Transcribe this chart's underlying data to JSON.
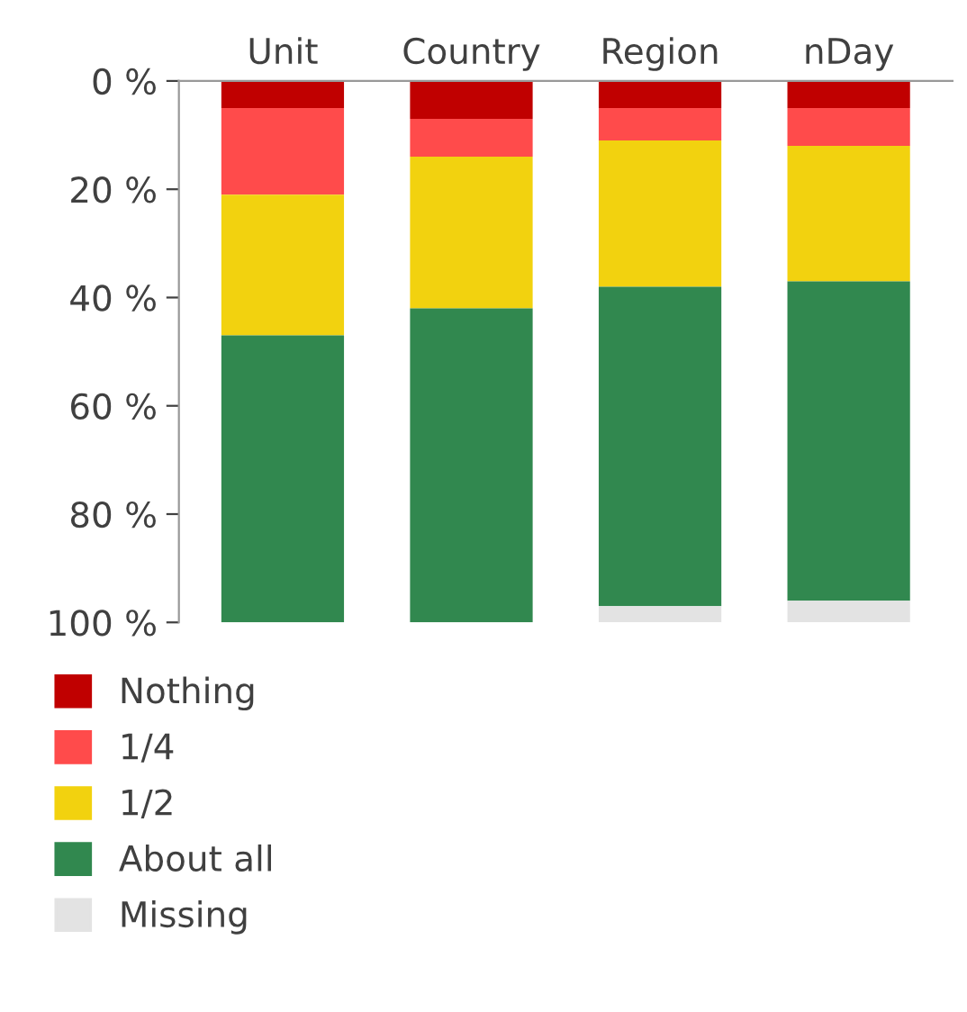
{
  "chart_data": {
    "type": "bar",
    "stacked": true,
    "categories": [
      "Unit",
      "Country",
      "Region",
      "nDay"
    ],
    "series": [
      {
        "name": "Nothing",
        "color": "#c00000",
        "values": [
          5,
          7,
          5,
          5
        ]
      },
      {
        "name": "1/4",
        "color": "#ff4b4b",
        "values": [
          16,
          7,
          6,
          7
        ]
      },
      {
        "name": "1/2",
        "color": "#f2d20f",
        "values": [
          26,
          28,
          27,
          25
        ]
      },
      {
        "name": "About all",
        "color": "#31884f",
        "values": [
          53,
          58,
          59,
          59
        ]
      },
      {
        "name": "Missing",
        "color": "#e3e3e3",
        "values": [
          0,
          0,
          3,
          4
        ]
      }
    ],
    "ylim": [
      100,
      0
    ],
    "yticks": [
      {
        "value": 0,
        "label": "0 %"
      },
      {
        "value": 20,
        "label": "20 %"
      },
      {
        "value": 40,
        "label": "40 %"
      },
      {
        "value": 60,
        "label": "60 %"
      },
      {
        "value": 80,
        "label": "80 %"
      },
      {
        "value": 100,
        "label": "100 %"
      }
    ],
    "grid": false,
    "legend": "bottom"
  }
}
